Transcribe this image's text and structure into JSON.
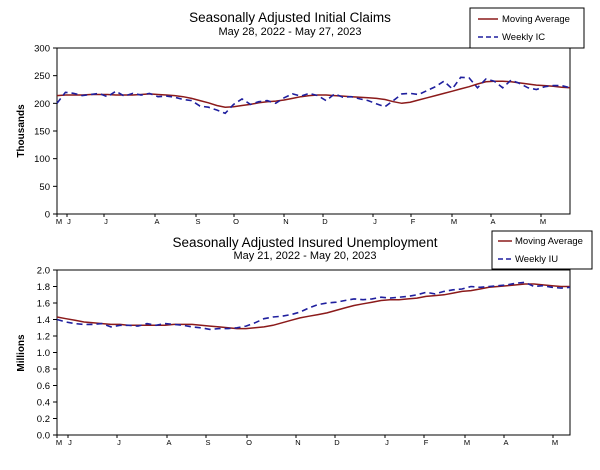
{
  "chart_data": [
    {
      "type": "line",
      "title": "Seasonally Adjusted Initial Claims",
      "subtitle": "May 28, 2022 - May 27, 2023",
      "ylabel": "Thousands",
      "ylim": [
        0,
        300
      ],
      "yticks": [
        "0",
        "50",
        "100",
        "150",
        "200",
        "250",
        "300"
      ],
      "month_labels": [
        "M",
        "J",
        "J",
        "A",
        "S",
        "O",
        "N",
        "D",
        "J",
        "F",
        "M",
        "A",
        "M"
      ],
      "legend": {
        "position": "top-right",
        "ma_label": "Moving Average",
        "weekly_label": "Weekly IC"
      },
      "colors": {
        "ma": "#8b1a1a",
        "weekly": "#1f1f9e"
      },
      "series": [
        {
          "name": "Moving Average",
          "values": [
            214,
            215,
            215,
            215,
            216,
            216,
            216,
            215,
            215,
            215,
            216,
            217,
            216,
            215,
            214,
            212,
            209,
            205,
            201,
            196,
            193,
            194,
            196,
            198,
            201,
            203,
            204,
            206,
            209,
            212,
            214,
            215,
            215,
            214,
            213,
            212,
            211,
            210,
            209,
            207,
            203,
            200,
            202,
            206,
            210,
            214,
            218,
            222,
            226,
            230,
            235,
            239,
            240,
            240,
            239,
            237,
            235,
            233,
            232,
            231,
            229,
            228
          ]
        },
        {
          "name": "Weekly IC",
          "values": [
            200,
            220,
            218,
            214,
            216,
            218,
            212,
            222,
            213,
            218,
            215,
            218,
            212,
            213,
            211,
            207,
            205,
            195,
            193,
            188,
            182,
            198,
            208,
            198,
            203,
            205,
            200,
            210,
            217,
            213,
            218,
            214,
            205,
            217,
            211,
            212,
            208,
            205,
            199,
            194,
            205,
            217,
            218,
            216,
            223,
            230,
            240,
            226,
            247,
            246,
            228,
            244,
            240,
            228,
            242,
            236,
            228,
            225,
            230,
            232,
            232,
            228
          ]
        }
      ]
    },
    {
      "type": "line",
      "title": "Seasonally Adjusted Insured Unemployment",
      "subtitle": "May 21, 2022 - May 20, 2023",
      "ylabel": "Millions",
      "ylim": [
        0.0,
        2.0
      ],
      "yticks": [
        "0.0",
        "0.2",
        "0.4",
        "0.6",
        "0.8",
        "1.0",
        "1.2",
        "1.4",
        "1.6",
        "1.8",
        "2.0"
      ],
      "month_labels": [
        "M",
        "J",
        "J",
        "A",
        "S",
        "O",
        "N",
        "D",
        "J",
        "F",
        "M",
        "A",
        "M"
      ],
      "legend": {
        "position": "top-right",
        "ma_label": "Moving Average",
        "weekly_label": "Weekly IU"
      },
      "colors": {
        "ma": "#8b1a1a",
        "weekly": "#1f1f9e"
      },
      "series": [
        {
          "name": "Moving Average",
          "values": [
            1.43,
            1.41,
            1.39,
            1.37,
            1.36,
            1.35,
            1.34,
            1.34,
            1.33,
            1.33,
            1.33,
            1.33,
            1.33,
            1.34,
            1.34,
            1.34,
            1.33,
            1.32,
            1.31,
            1.3,
            1.29,
            1.29,
            1.3,
            1.31,
            1.33,
            1.36,
            1.39,
            1.42,
            1.44,
            1.46,
            1.48,
            1.51,
            1.54,
            1.57,
            1.59,
            1.61,
            1.63,
            1.64,
            1.64,
            1.65,
            1.66,
            1.68,
            1.69,
            1.7,
            1.72,
            1.74,
            1.75,
            1.77,
            1.79,
            1.8,
            1.81,
            1.82,
            1.83,
            1.83,
            1.82,
            1.81,
            1.8,
            1.8
          ]
        },
        {
          "name": "Weekly IU",
          "values": [
            1.4,
            1.37,
            1.35,
            1.34,
            1.34,
            1.35,
            1.31,
            1.33,
            1.33,
            1.32,
            1.35,
            1.33,
            1.35,
            1.34,
            1.33,
            1.31,
            1.3,
            1.28,
            1.29,
            1.29,
            1.3,
            1.32,
            1.36,
            1.41,
            1.43,
            1.44,
            1.46,
            1.49,
            1.54,
            1.58,
            1.6,
            1.61,
            1.63,
            1.65,
            1.64,
            1.65,
            1.67,
            1.66,
            1.67,
            1.68,
            1.7,
            1.73,
            1.71,
            1.74,
            1.76,
            1.77,
            1.8,
            1.79,
            1.8,
            1.81,
            1.82,
            1.84,
            1.85,
            1.8,
            1.81,
            1.79,
            1.78,
            1.79
          ]
        }
      ]
    }
  ]
}
